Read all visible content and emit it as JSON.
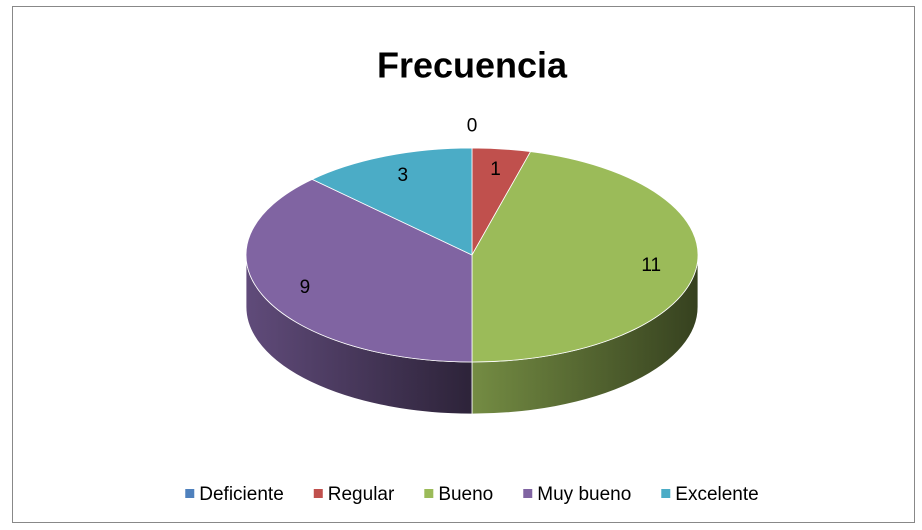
{
  "chart_data": {
    "type": "pie",
    "title": "Frecuencia",
    "categories": [
      "Deficiente",
      "Regular",
      "Bueno",
      "Muy bueno",
      "Excelente"
    ],
    "values": [
      0,
      1,
      11,
      9,
      3
    ],
    "colors": [
      "#4f81bd",
      "#c0504d",
      "#9bbb59",
      "#8064a2",
      "#4bacc6"
    ],
    "legend": "bottom"
  }
}
